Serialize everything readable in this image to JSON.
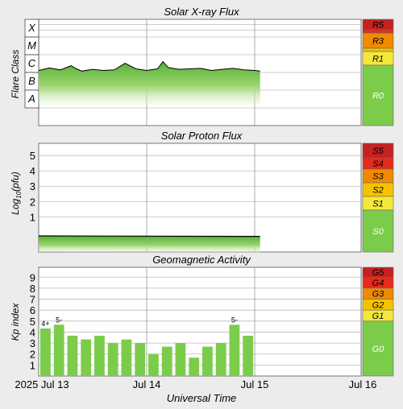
{
  "chart_data": [
    {
      "type": "area",
      "title": "Solar X-ray Flux",
      "ylabel": "Flare Class",
      "y_scale": "log",
      "ylim": [
        1e-09,
        0.001
      ],
      "class_labels": [
        "X",
        "M",
        "C",
        "B",
        "A"
      ],
      "series": [
        {
          "name": "flux",
          "x": [
            0.0,
            0.1,
            0.2,
            0.3,
            0.35,
            0.4,
            0.5,
            0.6,
            0.7,
            0.8,
            0.9,
            1.0,
            1.1,
            1.15,
            1.2,
            1.3,
            1.4,
            1.5,
            1.6,
            1.7,
            1.8,
            1.9,
            2.0,
            2.05
          ],
          "y": [
            1.3e-06,
            1.8e-06,
            1.4e-06,
            2.4e-06,
            1.6e-06,
            1.2e-06,
            1.5e-06,
            1.3e-06,
            1.4e-06,
            3.3e-06,
            1.6e-06,
            1.3e-06,
            1.6e-06,
            4.1e-06,
            1.9e-06,
            1.5e-06,
            1.6e-06,
            1.7e-06,
            1.3e-06,
            1.5e-06,
            1.7e-06,
            1.4e-06,
            1.3e-06,
            1.2e-06
          ]
        }
      ],
      "scale_levels": [
        "R5",
        "R3",
        "R1",
        "R0"
      ],
      "colors": {
        "line": "#000000",
        "fill_top": "#55b036",
        "fill_bottom": "#d8f0c0"
      }
    },
    {
      "type": "area",
      "title": "Solar Proton Flux",
      "ylabel": "Log10(pfu)",
      "ylabel_base": "Log",
      "ylabel_sub": "10",
      "ylabel_unit": "(pfu)",
      "ylim": [
        -1.3,
        5.8
      ],
      "y_ticks": [
        "1",
        "2",
        "3",
        "4",
        "5"
      ],
      "series": [
        {
          "name": "proton",
          "x": [
            0.0,
            2.05
          ],
          "y": [
            -0.25,
            -0.28
          ]
        }
      ],
      "scale_levels": [
        "S5",
        "S4",
        "S3",
        "S2",
        "S1",
        "S0"
      ],
      "colors": {
        "line": "#000000",
        "fill_top": "#55b036",
        "fill_bottom": "#d8f0c0"
      }
    },
    {
      "type": "bar",
      "title": "Geomagnetic Activity",
      "ylabel": "Kp index",
      "xlabel": "Universal Time",
      "ylim": [
        0,
        9.9
      ],
      "y_ticks": [
        "1",
        "2",
        "3",
        "4",
        "5",
        "6",
        "7",
        "8",
        "9"
      ],
      "x_ticks": [
        "2025 Jul 13",
        "Jul 14",
        "Jul 15",
        "Jul 16"
      ],
      "values": [
        4.33,
        4.67,
        3.67,
        3.33,
        3.67,
        3.0,
        3.33,
        3.0,
        2.0,
        2.67,
        3.0,
        1.67,
        2.67,
        3.0,
        4.67,
        3.67
      ],
      "bar_labels": {
        "0": "4+",
        "1": "5-",
        "14": "5-"
      },
      "scale_levels": [
        "G5",
        "G4",
        "G3",
        "G2",
        "G1",
        "G0"
      ],
      "colors": {
        "bar": "#7ccc4c"
      }
    }
  ],
  "colors": {
    "background": "#ececec",
    "grid": "#bbbbbb",
    "day_line": "#999999",
    "scale_green": "#7ccc4c",
    "scale_yellow": "#f5e83a",
    "scale_yellow_orange": "#f6c200",
    "scale_orange": "#f08a00",
    "scale_red": "#e52b1b",
    "scale_dark_red": "#c62121"
  }
}
